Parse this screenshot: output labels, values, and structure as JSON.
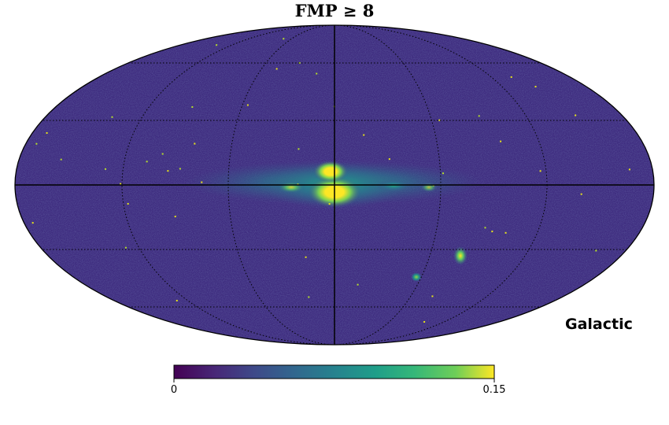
{
  "chart_data": {
    "type": "heatmap",
    "title": "FMP ≥ 8",
    "projection": "mollweide",
    "coordinate_system": "Galactic",
    "colormap": "viridis",
    "colorbar": {
      "min": 0,
      "max": 0.15,
      "tick_labels": [
        "0",
        "0.15"
      ],
      "orientation": "horizontal",
      "placement": "bottom"
    },
    "graticule": {
      "meridians_deg": [
        -150,
        -120,
        -60,
        0,
        60,
        120,
        150
      ],
      "parallels_deg": [
        -60,
        -30,
        0,
        30,
        60
      ],
      "style": "dotted"
    },
    "features": [
      {
        "name": "galactic-bulge",
        "l_deg": 0,
        "b_deg": -2,
        "value": 0.15
      },
      {
        "name": "galactic-plane",
        "l_range_deg": [
          -60,
          60
        ],
        "b_deg": 0,
        "value": 0.08
      },
      {
        "name": "large-magellanic-cloud",
        "l_deg": 280,
        "b_deg": -33,
        "value": 0.15
      },
      {
        "name": "small-magellanic-cloud",
        "l_deg": 303,
        "b_deg": -44,
        "value": 0.1
      }
    ],
    "background_value": 0.02
  },
  "colors": {
    "viridis_low": "#440154",
    "viridis_mid": "#21918c",
    "viridis_high": "#fde725",
    "background": "#3e2c7e"
  }
}
